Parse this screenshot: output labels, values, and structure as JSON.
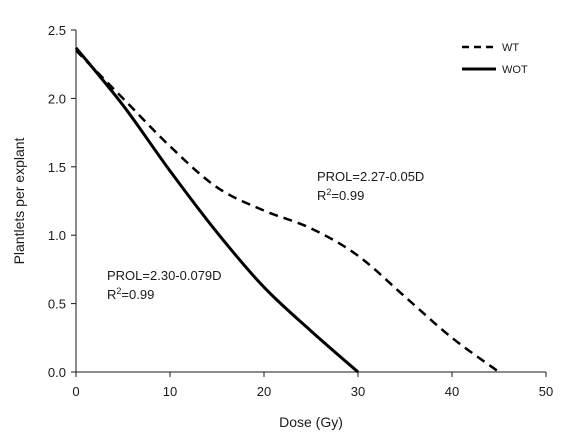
{
  "chart_data": {
    "type": "line",
    "xlabel": "Dose (Gy)",
    "ylabel": "Plantlets per explant",
    "xlim": [
      0,
      50
    ],
    "ylim": [
      0,
      2.5
    ],
    "xticks": [
      0,
      10,
      20,
      30,
      40,
      50
    ],
    "yticks": [
      0.0,
      0.5,
      1.0,
      1.5,
      2.0,
      2.5
    ],
    "xtick_labels": [
      "0",
      "10",
      "20",
      "30",
      "40",
      "50"
    ],
    "ytick_labels": [
      "0.0",
      "0.5",
      "1.0",
      "1.5",
      "2.0",
      "2.5"
    ],
    "grid": false,
    "legend_position": "top-right",
    "series": [
      {
        "name": "WT",
        "style": "dashed",
        "color": "#000000",
        "x": [
          0,
          5,
          10,
          15,
          20,
          25,
          30,
          35,
          40,
          45
        ],
        "y": [
          2.35,
          2.0,
          1.65,
          1.35,
          1.18,
          1.05,
          0.85,
          0.55,
          0.25,
          0.0
        ]
      },
      {
        "name": "WOT",
        "style": "solid",
        "color": "#000000",
        "x": [
          0,
          5,
          10,
          15,
          20,
          25,
          30
        ],
        "y": [
          2.37,
          1.95,
          1.47,
          1.02,
          0.62,
          0.3,
          0.0
        ]
      }
    ],
    "annotations": [
      {
        "id": "wt-eq",
        "line1": "PROL=2.27-0.05D",
        "r_prefix": "R",
        "r_sup": "2",
        "r_suffix": "=0.99",
        "x": 25.9,
        "y": 1.3
      },
      {
        "id": "wot-eq",
        "line1": "PROL=2.30-0.079D",
        "r_prefix": "R",
        "r_sup": "2",
        "r_suffix": "=0.99",
        "x": 3.3,
        "y": 0.62
      }
    ]
  }
}
